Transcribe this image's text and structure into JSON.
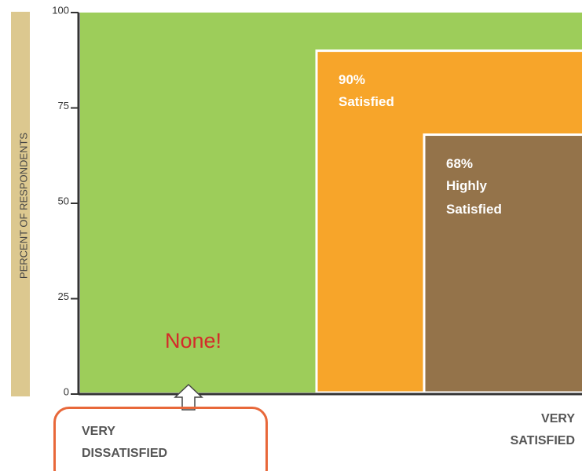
{
  "chart_data": {
    "type": "nested",
    "ylabel": "PERCENT OF RESPONDENTS",
    "ylim": [
      0,
      100
    ],
    "yticks": [
      0,
      25,
      50,
      75,
      100
    ],
    "x_labels": [
      "VERY DISSATISFIED",
      "VERY SATISFIED"
    ],
    "annotation": "None!",
    "series": [
      {
        "color": "#9dcd5a",
        "values": [
          100
        ]
      },
      {
        "name": "Satisfied",
        "color": "#f7a52a",
        "values": [
          90
        ],
        "value_labels": [
          "90%"
        ]
      },
      {
        "name": "Highly Satisfied",
        "color": "#94734a",
        "values": [
          68
        ],
        "value_labels": [
          "68%"
        ]
      }
    ]
  }
}
